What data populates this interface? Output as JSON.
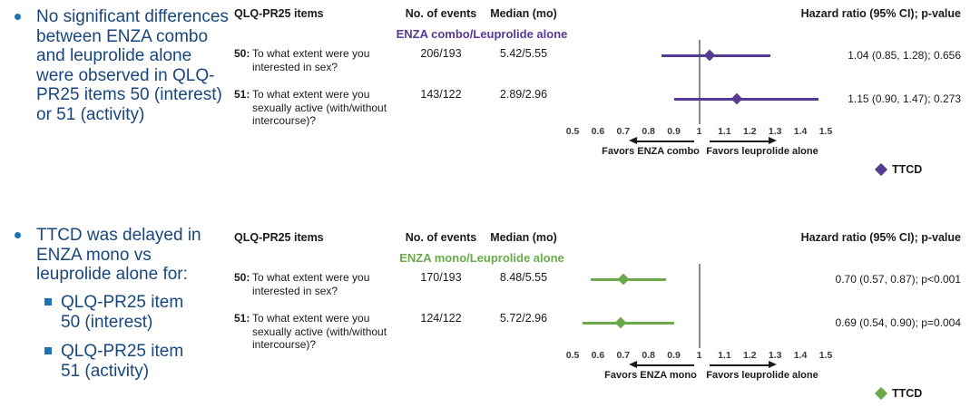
{
  "colors": {
    "bullet_text": "#17477e",
    "bullet_marker": "#1e73b5",
    "reference_line": "#8a8a8a",
    "combo_purple": "#563a93",
    "mono_green": "#6aaa4b"
  },
  "bullets": [
    {
      "text": "No significant differences between ENZA combo and leuprolide alone were observed in QLQ-PR25 items 50 (interest) or 51 (activity)",
      "sub": []
    },
    {
      "text": "TTCD was delayed in ENZA mono vs leuprolide alone for:",
      "sub": [
        "QLQ-PR25 item 50 (interest)",
        "QLQ-PR25 item 51 (activity)"
      ]
    }
  ],
  "chart_data": [
    {
      "type": "scatter",
      "subtype": "forest-plot",
      "title": "ENZA combo/Leuprolide alone",
      "color": "#563a93",
      "columns": {
        "items": "QLQ-PR25 items",
        "events": "No. of events",
        "median": "Median (mo)",
        "hazard": "Hazard ratio (95% CI); p-value"
      },
      "rows": [
        {
          "item_no": "50:",
          "item": "To what extent were you interested in sex?",
          "events": "206/193",
          "median_mo": "5.42/5.55",
          "hr": 1.04,
          "ci_low": 0.85,
          "ci_high": 1.28,
          "hr_label": "1.04 (0.85, 1.28); 0.656"
        },
        {
          "item_no": "51:",
          "item": "To what extent were you sexually active (with/without intercourse)?",
          "events": "143/122",
          "median_mo": "2.89/2.96",
          "hr": 1.15,
          "ci_low": 0.9,
          "ci_high": 1.47,
          "hr_label": "1.15 (0.90, 1.47); 0.273"
        }
      ],
      "x_axis": {
        "range": [
          0.5,
          1.5
        ],
        "reference": 1,
        "ticks": [
          "0.5",
          "0.6",
          "0.7",
          "0.8",
          "0.9",
          "1",
          "1.1",
          "1.2",
          "1.3",
          "1.4",
          "1.5"
        ]
      },
      "favors_left": "Favors ENZA combo",
      "favors_right": "Favors leuprolide alone",
      "legend": "TTCD"
    },
    {
      "type": "scatter",
      "subtype": "forest-plot",
      "title": "ENZA mono/Leuprolide alone",
      "color": "#6aaa4b",
      "columns": {
        "items": "QLQ-PR25 items",
        "events": "No. of events",
        "median": "Median (mo)",
        "hazard": "Hazard ratio (95% CI); p-value"
      },
      "rows": [
        {
          "item_no": "50:",
          "item": "To what extent were you interested in sex?",
          "events": "170/193",
          "median_mo": "8.48/5.55",
          "hr": 0.7,
          "ci_low": 0.57,
          "ci_high": 0.87,
          "hr_label": "0.70 (0.57, 0.87); p<0.001"
        },
        {
          "item_no": "51:",
          "item": "To what extent were you sexually active (with/without intercourse)?",
          "events": "124/122",
          "median_mo": "5.72/2.96",
          "hr": 0.69,
          "ci_low": 0.54,
          "ci_high": 0.9,
          "hr_label": "0.69 (0.54, 0.90); p=0.004"
        }
      ],
      "x_axis": {
        "range": [
          0.5,
          1.5
        ],
        "reference": 1,
        "ticks": [
          "0.5",
          "0.6",
          "0.7",
          "0.8",
          "0.9",
          "1",
          "1.1",
          "1.2",
          "1.3",
          "1.4",
          "1.5"
        ]
      },
      "favors_left": "Favors ENZA mono",
      "favors_right": "Favors leuprolide alone",
      "legend": "TTCD"
    }
  ]
}
